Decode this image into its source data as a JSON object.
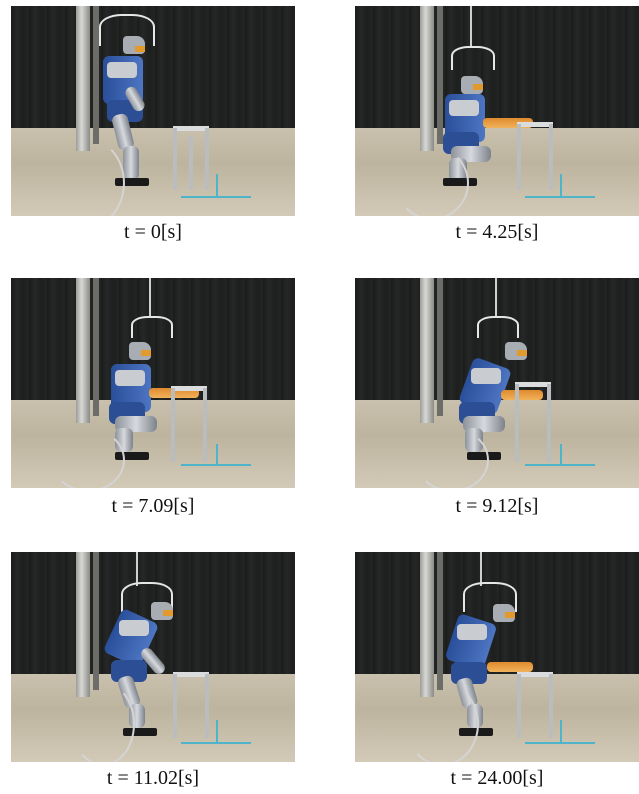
{
  "panels": [
    {
      "caption": "t = 0[s]"
    },
    {
      "caption": "t = 4.25[s]"
    },
    {
      "caption": "t = 7.09[s]"
    },
    {
      "caption": "t = 9.12[s]"
    },
    {
      "caption": "t = 11.02[s]"
    },
    {
      "caption": "t = 24.00[s]"
    }
  ],
  "colors": {
    "curtain": "#222423",
    "floor": "#c9c1ad",
    "robot_blue": "#3a62b0",
    "robot_silver": "#c9ccd1",
    "robot_orange": "#e39a2c",
    "floor_tape": "#4fb3c9",
    "caption_text": "#111111"
  }
}
